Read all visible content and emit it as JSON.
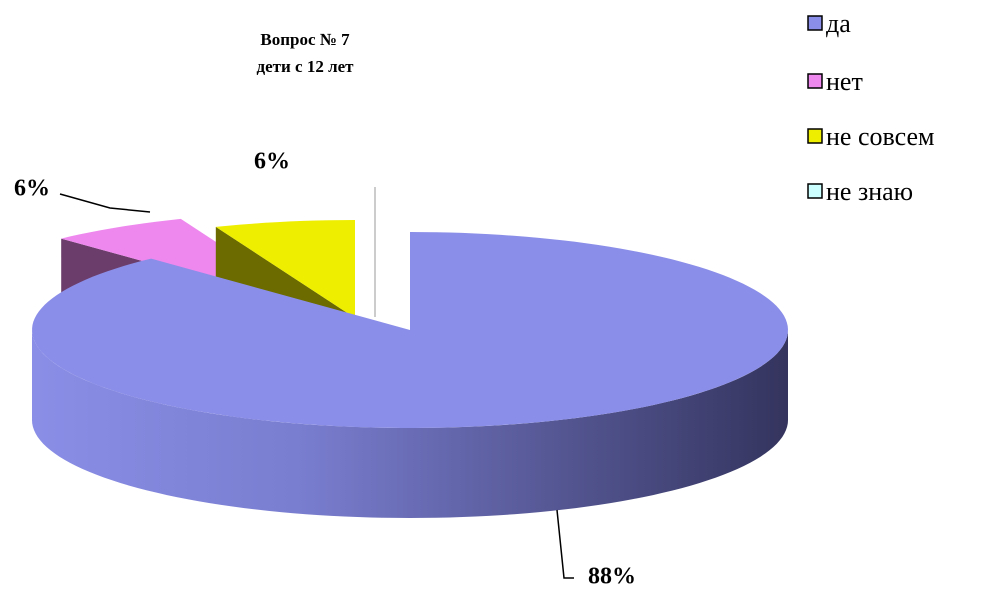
{
  "chart_data": {
    "type": "pie3d",
    "title": "Вопрос № 7",
    "subtitle": "дети с 12 лет",
    "categories": [
      "да",
      "нет",
      "не совсем",
      "не знаю"
    ],
    "values": [
      88,
      6,
      6,
      0
    ],
    "value_labels": [
      "88%",
      "6%",
      "6%",
      null
    ],
    "colors": [
      "#8b8ee8",
      "#ee88ee",
      "#eeee00",
      "#ccffff"
    ],
    "legend": "right"
  }
}
